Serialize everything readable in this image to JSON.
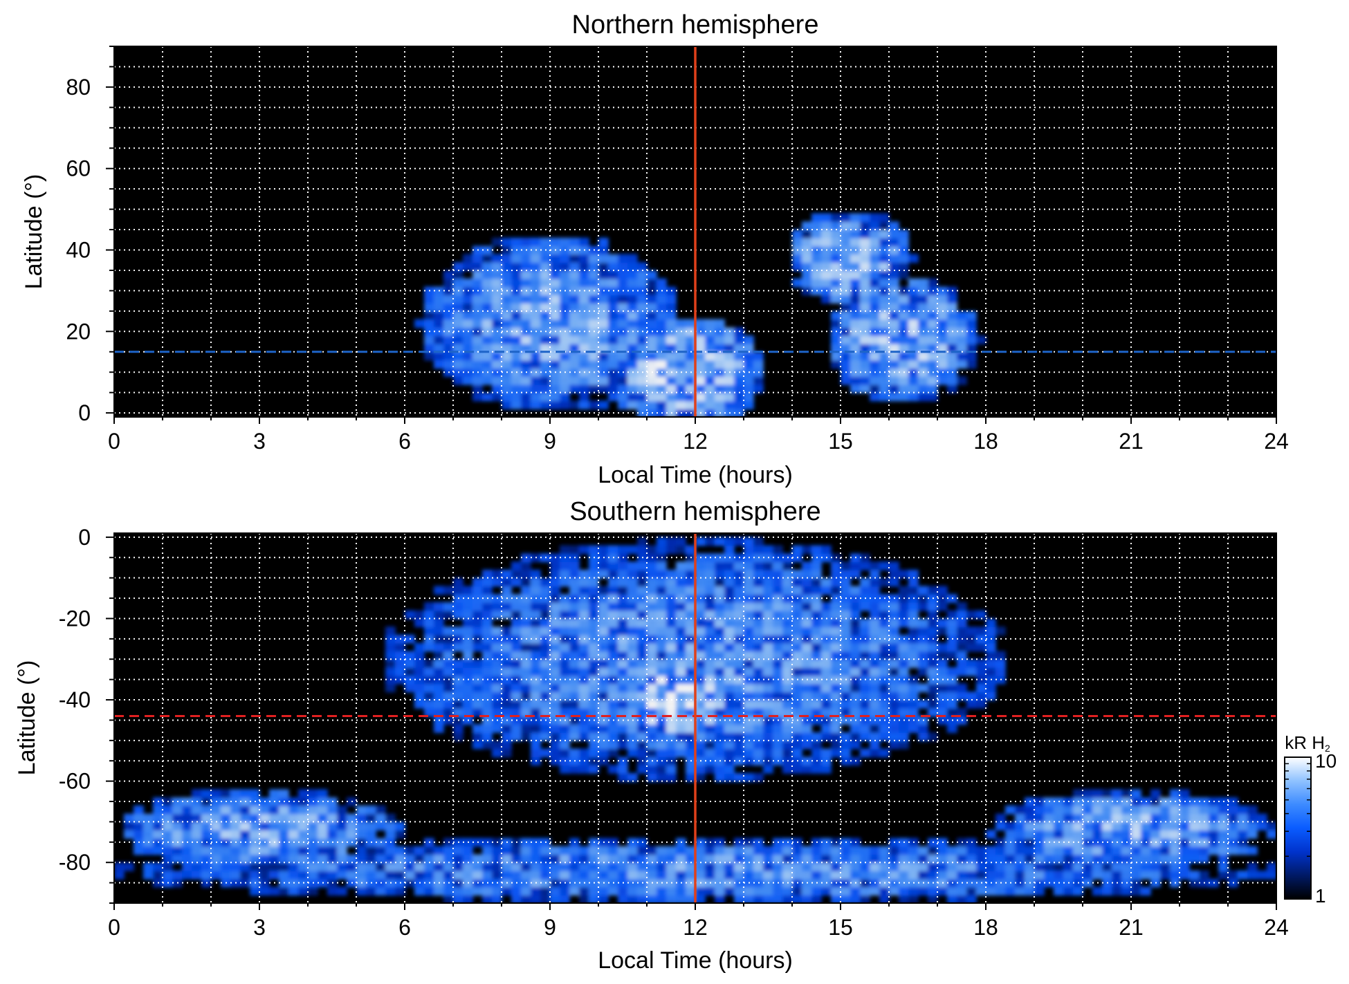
{
  "chart_data": [
    {
      "type": "heatmap",
      "title": "Northern hemisphere",
      "xlabel": "Local Time (hours)",
      "ylabel": "Latitude (°)",
      "xlim": [
        0,
        24
      ],
      "ylim": [
        -1,
        90
      ],
      "x_ticks": [
        "0",
        "3",
        "6",
        "9",
        "12",
        "15",
        "18",
        "21",
        "24"
      ],
      "y_ticks": [
        "0",
        "20",
        "40",
        "60",
        "80"
      ],
      "x_tick_values": [
        0,
        3,
        6,
        9,
        12,
        15,
        18,
        21,
        24
      ],
      "y_tick_values": [
        0,
        20,
        40,
        60,
        80
      ],
      "grid": true,
      "colormap": [
        "#000000",
        "#001a66",
        "#0033cc",
        "#0a5cff",
        "#3d8bff",
        "#8fc2ff",
        "#ffffff"
      ],
      "reference_line_local_time": 12,
      "reference_line_latitude": 15,
      "reference_line_color": "#e0401a",
      "latitude_line_color": "#1e64c8",
      "emission_regions": [
        {
          "lt_center": 9.0,
          "lat_center": 22,
          "lt_halfwidth": 2.7,
          "lat_halfwidth": 22,
          "peak_kR": 7
        },
        {
          "lt_center": 11.8,
          "lat_center": 10,
          "lt_halfwidth": 1.6,
          "lat_halfwidth": 14,
          "peak_kR": 9
        },
        {
          "lt_center": 15.2,
          "lat_center": 38,
          "lt_halfwidth": 1.3,
          "lat_halfwidth": 12,
          "peak_kR": 8
        },
        {
          "lt_center": 16.3,
          "lat_center": 18,
          "lt_halfwidth": 1.6,
          "lat_halfwidth": 16,
          "peak_kR": 8
        }
      ]
    },
    {
      "type": "heatmap",
      "title": "Southern hemisphere",
      "xlabel": "Local Time (hours)",
      "ylabel": "Latitude (°)",
      "xlim": [
        0,
        24
      ],
      "ylim": [
        -90,
        1
      ],
      "x_ticks": [
        "0",
        "3",
        "6",
        "9",
        "12",
        "15",
        "18",
        "21",
        "24"
      ],
      "y_ticks": [
        "0",
        "-20",
        "-40",
        "-60",
        "-80"
      ],
      "x_tick_values": [
        0,
        3,
        6,
        9,
        12,
        15,
        18,
        21,
        24
      ],
      "y_tick_values": [
        0,
        -20,
        -40,
        -60,
        -80
      ],
      "grid": true,
      "colormap": [
        "#000000",
        "#001a66",
        "#0033cc",
        "#0a5cff",
        "#3d8bff",
        "#8fc2ff",
        "#ffffff"
      ],
      "reference_line_local_time": 12,
      "reference_line_latitude": -44,
      "reference_line_color": "#e0401a",
      "latitude_line_color": "#e02020",
      "emission_regions": [
        {
          "lt_center": 11.6,
          "lat_center": -40,
          "lt_halfwidth": 1.2,
          "lat_halfwidth": 10,
          "peak_kR": 10
        },
        {
          "lt_center": 12.0,
          "lat_center": -30,
          "lt_halfwidth": 6.5,
          "lat_halfwidth": 30,
          "peak_kR": 6
        },
        {
          "lt_center": 3.0,
          "lat_center": -72,
          "lt_halfwidth": 3.0,
          "lat_halfwidth": 10,
          "peak_kR": 7
        },
        {
          "lt_center": 21.0,
          "lat_center": -72,
          "lt_halfwidth": 3.0,
          "lat_halfwidth": 10,
          "peak_kR": 7
        },
        {
          "lt_center": 12.0,
          "lat_center": -82,
          "lt_halfwidth": 12.0,
          "lat_halfwidth": 8,
          "peak_kR": 6
        }
      ]
    }
  ],
  "colorbar": {
    "label_main": "kR H",
    "label_sub": "2",
    "min_label": "1",
    "max_label": "10",
    "min": 1,
    "max": 10,
    "scale": "log"
  }
}
